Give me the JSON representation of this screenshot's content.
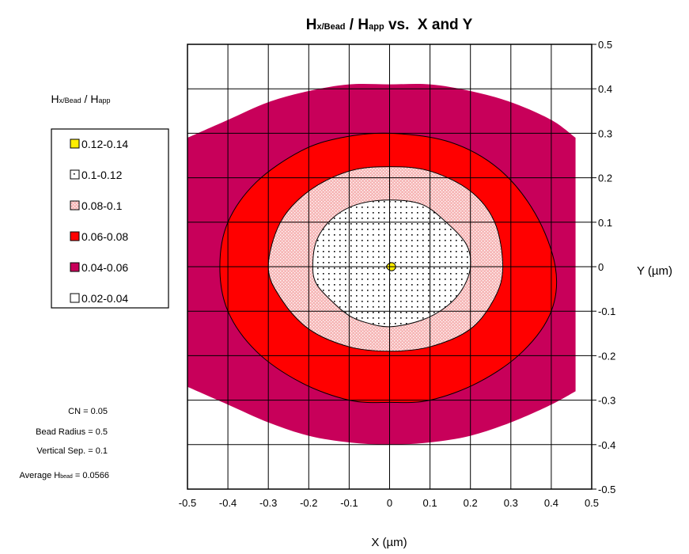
{
  "chart_data": {
    "type": "contour",
    "title": {
      "h1": "H",
      "h1_sub": "x/Bead",
      "sep": " / ",
      "h2": "H",
      "h2_sub": "app",
      "rest": " vs.  X and Y"
    },
    "legend_title": {
      "h1": "H",
      "h1_sub": "x/Bead",
      "sep": " / ",
      "h2": "H",
      "h2_sub": "app"
    },
    "xlabel": "X (µm)",
    "ylabel": "Y (µm)",
    "xlim": [
      -0.5,
      0.5
    ],
    "ylim": [
      -0.5,
      0.5
    ],
    "xticks": [
      "-0.5",
      "-0.4",
      "-0.3",
      "-0.2",
      "-0.1",
      "0",
      "0.1",
      "0.2",
      "0.3",
      "0.4",
      "0.5"
    ],
    "yticks": [
      "0.5",
      "0.4",
      "0.3",
      "0.2",
      "0.1",
      "0",
      "-0.1",
      "-0.2",
      "-0.3",
      "-0.4",
      "-0.5"
    ],
    "grid": true,
    "legend_position": "left",
    "levels": [
      {
        "label": "0.12-0.14",
        "color": "#ffee00",
        "pattern": "none"
      },
      {
        "label": "0.1-0.12",
        "color": "#ffffff",
        "pattern": "dots"
      },
      {
        "label": "0.08-0.1",
        "color": "#f6b6b6",
        "pattern": "crosshatch"
      },
      {
        "label": "0.06-0.08",
        "color": "#ff0000",
        "pattern": "none"
      },
      {
        "label": "0.04-0.06",
        "color": "#c8005a",
        "pattern": "none"
      },
      {
        "label": "0.02-0.04",
        "color": "#ffffff",
        "pattern": "none"
      }
    ],
    "contours": [
      {
        "range": "0.04-0.06",
        "points": [
          [
            -0.5,
            -0.27
          ],
          [
            -0.4,
            -0.31
          ],
          [
            -0.3,
            -0.35
          ],
          [
            -0.2,
            -0.38
          ],
          [
            -0.1,
            -0.395
          ],
          [
            0,
            -0.4
          ],
          [
            0.1,
            -0.395
          ],
          [
            0.2,
            -0.38
          ],
          [
            0.3,
            -0.35
          ],
          [
            0.4,
            -0.31
          ],
          [
            0.46,
            -0.28
          ],
          [
            0.46,
            0.29
          ],
          [
            0.4,
            0.33
          ],
          [
            0.3,
            0.37
          ],
          [
            0.2,
            0.395
          ],
          [
            0.1,
            0.41
          ],
          [
            0,
            0.41
          ],
          [
            -0.1,
            0.41
          ],
          [
            -0.2,
            0.395
          ],
          [
            -0.3,
            0.37
          ],
          [
            -0.4,
            0.33
          ],
          [
            -0.5,
            0.29
          ]
        ]
      },
      {
        "range": "0.06-0.08",
        "points": [
          [
            0,
            0.3
          ],
          [
            0.15,
            0.28
          ],
          [
            0.27,
            0.22
          ],
          [
            0.36,
            0.12
          ],
          [
            0.41,
            0
          ],
          [
            0.4,
            -0.1
          ],
          [
            0.33,
            -0.19
          ],
          [
            0.22,
            -0.26
          ],
          [
            0.1,
            -0.3
          ],
          [
            0,
            -0.305
          ],
          [
            -0.1,
            -0.3
          ],
          [
            -0.22,
            -0.26
          ],
          [
            -0.33,
            -0.19
          ],
          [
            -0.4,
            -0.1
          ],
          [
            -0.42,
            0
          ],
          [
            -0.4,
            0.1
          ],
          [
            -0.33,
            0.19
          ],
          [
            -0.22,
            0.26
          ],
          [
            -0.12,
            0.29
          ]
        ]
      },
      {
        "range": "0.08-0.1",
        "points": [
          [
            0,
            0.225
          ],
          [
            0.1,
            0.215
          ],
          [
            0.2,
            0.17
          ],
          [
            0.26,
            0.1
          ],
          [
            0.28,
            0
          ],
          [
            0.26,
            -0.07
          ],
          [
            0.2,
            -0.14
          ],
          [
            0.1,
            -0.18
          ],
          [
            0,
            -0.19
          ],
          [
            -0.1,
            -0.18
          ],
          [
            -0.2,
            -0.14
          ],
          [
            -0.27,
            -0.07
          ],
          [
            -0.3,
            0
          ],
          [
            -0.27,
            0.1
          ],
          [
            -0.2,
            0.17
          ],
          [
            -0.1,
            0.215
          ]
        ]
      },
      {
        "range": "0.1-0.12",
        "points": [
          [
            0,
            0.15
          ],
          [
            0.08,
            0.14
          ],
          [
            0.14,
            0.1
          ],
          [
            0.19,
            0.05
          ],
          [
            0.2,
            0
          ],
          [
            0.18,
            -0.05
          ],
          [
            0.14,
            -0.09
          ],
          [
            0.08,
            -0.12
          ],
          [
            0,
            -0.135
          ],
          [
            -0.06,
            -0.125
          ],
          [
            -0.1,
            -0.11
          ],
          [
            -0.14,
            -0.08
          ],
          [
            -0.18,
            -0.04
          ],
          [
            -0.19,
            0
          ],
          [
            -0.18,
            0.06
          ],
          [
            -0.14,
            0.11
          ],
          [
            -0.08,
            0.14
          ]
        ]
      },
      {
        "range": "0.12-0.14",
        "points": [
          [
            -0.008,
            0
          ],
          [
            0,
            0.008
          ],
          [
            0.01,
            0.008
          ],
          [
            0.015,
            0
          ],
          [
            0.01,
            -0.008
          ],
          [
            0,
            -0.008
          ]
        ]
      }
    ],
    "annotations": [
      {
        "label": "CN = ",
        "value": "0.05"
      },
      {
        "label": "Bead Radius = ",
        "value": "0.5"
      },
      {
        "label": "Vertical Sep. = ",
        "value": "0.1"
      },
      {
        "label": "Average H",
        "label_sub": "bead",
        "label_tail": " = ",
        "value": "0.0566"
      }
    ]
  }
}
